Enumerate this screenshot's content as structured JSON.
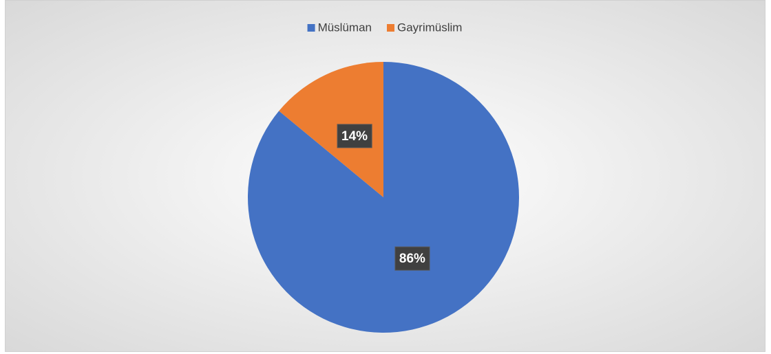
{
  "chart_data": {
    "type": "pie",
    "categories": [
      "Müslüman",
      "Gayrimüslim"
    ],
    "values": [
      86,
      14
    ],
    "value_labels": [
      "86%",
      "14%"
    ],
    "colors": [
      "#4472c4",
      "#ed7d31"
    ],
    "legend": "top"
  }
}
